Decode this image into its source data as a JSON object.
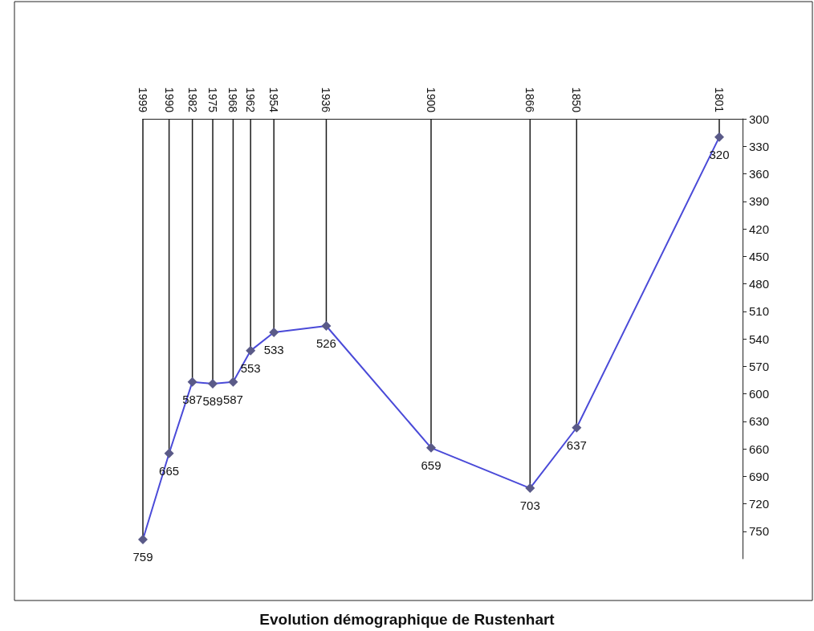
{
  "chart_data": {
    "type": "line",
    "title": "Evolution démographique de Rustenhart",
    "x": [
      1801,
      1850,
      1866,
      1900,
      1936,
      1954,
      1962,
      1968,
      1975,
      1982,
      1990,
      1999
    ],
    "series": [
      {
        "type": "line",
        "color": "#4a4ad8",
        "values": [
          320,
          637,
          703,
          659,
          526,
          533,
          553,
          587,
          589,
          587,
          665,
          759
        ]
      }
    ],
    "xlim": [
      1999,
      1793
    ],
    "xticks": [
      1801,
      1850,
      1866,
      1900,
      1936,
      1954,
      1962,
      1968,
      1975,
      1982,
      1990,
      1999
    ],
    "ylim": [
      780,
      300
    ],
    "yticks": [
      300,
      330,
      360,
      390,
      420,
      450,
      480,
      510,
      540,
      570,
      600,
      630,
      660,
      690,
      720,
      750
    ],
    "grid": "x",
    "marker": "diamond",
    "data_labels": true
  }
}
